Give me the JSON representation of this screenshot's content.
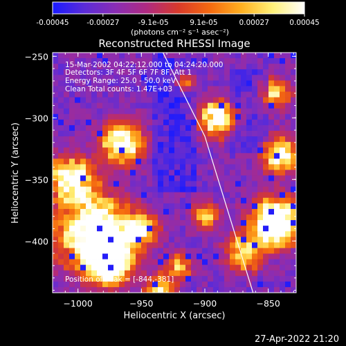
{
  "colorbar": {
    "ticks": [
      "-0.00045",
      "-0.00027",
      "-9.1e-05",
      "9.1e-05",
      "0.00027",
      "0.00045"
    ],
    "unit": "(photons cm⁻² s⁻¹ asec⁻²)",
    "stops": [
      "#1a1aff",
      "#5a2bd8",
      "#8a2db4",
      "#b02a80",
      "#d83a2a",
      "#f56a10",
      "#ffb020",
      "#fff27a",
      "#ffffff"
    ]
  },
  "title": "Reconstructed RHESSI Image",
  "info": {
    "line1": "15-Mar-2002 04:22:12.000 to 04:24:20.000",
    "line2": "Detectors: 3F 4F 5F 6F 7F 8F, Att 1",
    "line3": "Energy Range: 25.0 - 50.0 keV",
    "line4": "Clean     Total counts: 1.47E+03"
  },
  "peak_label": "Position of Peak = [-844,-381]",
  "timestamp": "27-Apr-2022 21:20",
  "chart_data": {
    "type": "heatmap",
    "xlabel": "Heliocentric X (arcsec)",
    "ylabel": "Heliocentric Y (arcsec)",
    "xlim": [
      -1020,
      -828
    ],
    "ylim": [
      -442,
      -247
    ],
    "x_ticks": [
      {
        "value": -1000,
        "label": "−1000"
      },
      {
        "value": -950,
        "label": "−950"
      },
      {
        "value": -900,
        "label": "−900"
      },
      {
        "value": -850,
        "label": "−850"
      }
    ],
    "y_ticks": [
      {
        "value": -250,
        "label": "−250"
      },
      {
        "value": -300,
        "label": "−300"
      },
      {
        "value": -350,
        "label": "−350"
      },
      {
        "value": -400,
        "label": "−400"
      }
    ],
    "peak": [
      -844,
      -381
    ],
    "limb": [
      [
        -933,
        -247
      ],
      [
        -900,
        -315
      ],
      [
        -862,
        -442
      ]
    ]
  }
}
